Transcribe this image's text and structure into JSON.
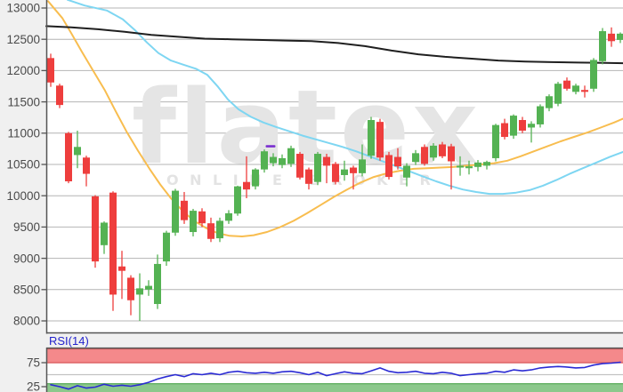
{
  "watermark": {
    "brand": "flatex",
    "subtitle": "ONLINE BROKER"
  },
  "colors": {
    "background_outer": "#f0f0f0",
    "background_panel": "#ffffff",
    "grid": "#b4b4b4",
    "axis_border": "#555555",
    "label_text": "#4a4a4a",
    "candle_up": "#54b253",
    "candle_down": "#ee3e3d",
    "ma_short_orange": "#f8bd4f",
    "ma_mid_cyan": "#7ed6f2",
    "ma_long_black": "#1f1f1f",
    "marker_purple": "#7a2fd0",
    "watermark_gray": "#e5e5e5",
    "rsi_line_blue": "#2b2bd4",
    "rsi_title_blue": "#2323cc",
    "rsi_band_red_fill": "#f4898b",
    "rsi_band_red_edge": "#dd6466",
    "rsi_band_green_fill": "#8cc88c",
    "rsi_band_green_edge": "#63b063",
    "rsi_midline_gray": "#c2c2c2"
  },
  "chart_data": [
    {
      "type": "candlestick",
      "title": "",
      "xlabel": "",
      "ylabel": "",
      "grid": true,
      "ylim": [
        7950,
        13130
      ],
      "y_ticks": [
        13000,
        12500,
        12000,
        11500,
        11000,
        10500,
        10000,
        9500,
        9000,
        8500,
        8000
      ],
      "candle_format": [
        "x",
        "open",
        "high",
        "low",
        "close"
      ],
      "candles": [
        [
          57,
          12200,
          12270,
          11740,
          11810
        ],
        [
          67,
          11760,
          11790,
          11400,
          11450
        ],
        [
          77,
          11000,
          11020,
          10200,
          10230
        ],
        [
          87,
          10650,
          11040,
          10440,
          10780
        ],
        [
          97,
          10610,
          10640,
          10150,
          10350
        ],
        [
          107,
          9990,
          10010,
          8850,
          8950
        ],
        [
          117,
          9210,
          9590,
          9070,
          9570
        ],
        [
          127,
          10050,
          10070,
          8160,
          8420
        ],
        [
          137,
          8870,
          9120,
          8350,
          8800
        ],
        [
          147,
          8690,
          8730,
          8090,
          8330
        ],
        [
          157,
          8420,
          8760,
          8000,
          8520
        ],
        [
          167,
          8500,
          8650,
          8400,
          8560
        ],
        [
          177,
          8270,
          9060,
          8190,
          8910
        ],
        [
          187,
          8950,
          9440,
          8880,
          9410
        ],
        [
          197,
          9410,
          10110,
          9360,
          10080
        ],
        [
          207,
          9920,
          10060,
          9550,
          9610
        ],
        [
          217,
          9420,
          9790,
          9350,
          9760
        ],
        [
          227,
          9750,
          9800,
          9500,
          9560
        ],
        [
          237,
          9560,
          9650,
          9260,
          9310
        ],
        [
          247,
          9320,
          9650,
          9260,
          9600
        ],
        [
          257,
          9600,
          9770,
          9550,
          9720
        ],
        [
          267,
          9715,
          10160,
          9680,
          10150
        ],
        [
          277,
          10220,
          10630,
          9960,
          10100
        ],
        [
          287,
          10150,
          10440,
          10100,
          10420
        ],
        [
          297,
          10420,
          10740,
          10370,
          10710
        ],
        [
          307,
          10520,
          10680,
          10470,
          10620
        ],
        [
          317,
          10490,
          10660,
          10440,
          10600
        ],
        [
          327,
          10510,
          10800,
          10460,
          10760
        ],
        [
          337,
          10670,
          10700,
          10260,
          10290
        ],
        [
          347,
          10420,
          10450,
          10100,
          10190
        ],
        [
          357,
          10220,
          10700,
          10170,
          10670
        ],
        [
          367,
          10620,
          10670,
          10200,
          10480
        ],
        [
          377,
          10510,
          10540,
          10180,
          10220
        ],
        [
          387,
          10330,
          10560,
          10240,
          10420
        ],
        [
          397,
          10450,
          10480,
          10100,
          10360
        ],
        [
          407,
          10360,
          10820,
          10310,
          10580
        ],
        [
          417,
          10640,
          11260,
          10590,
          11210
        ],
        [
          427,
          11180,
          11230,
          10560,
          10610
        ],
        [
          437,
          10650,
          10700,
          10260,
          10300
        ],
        [
          447,
          10620,
          10760,
          10420,
          10470
        ],
        [
          457,
          10290,
          10520,
          10150,
          10480
        ],
        [
          467,
          10540,
          10730,
          10490,
          10680
        ],
        [
          477,
          10780,
          10820,
          10480,
          10510
        ],
        [
          487,
          10610,
          10840,
          10560,
          10800
        ],
        [
          497,
          10820,
          10860,
          10600,
          10630
        ],
        [
          507,
          10790,
          10830,
          10100,
          10550
        ],
        [
          517,
          10450,
          10630,
          10320,
          10480
        ],
        [
          527,
          10440,
          10560,
          10340,
          10470
        ],
        [
          537,
          10460,
          10570,
          10390,
          10530
        ],
        [
          547,
          10480,
          10560,
          10420,
          10540
        ],
        [
          557,
          10600,
          11150,
          10550,
          11130
        ],
        [
          567,
          11160,
          11230,
          10900,
          10940
        ],
        [
          577,
          10960,
          11300,
          10910,
          11280
        ],
        [
          587,
          11210,
          11260,
          11000,
          11040
        ],
        [
          597,
          11090,
          11190,
          10850,
          11150
        ],
        [
          607,
          11140,
          11460,
          11090,
          11430
        ],
        [
          617,
          11400,
          11620,
          11350,
          11590
        ],
        [
          627,
          11470,
          11820,
          11430,
          11790
        ],
        [
          637,
          11840,
          11890,
          11680,
          11710
        ],
        [
          647,
          11660,
          11790,
          11620,
          11760
        ],
        [
          657,
          11690,
          11760,
          11570,
          11660
        ],
        [
          667,
          11710,
          12200,
          11660,
          12170
        ],
        [
          677,
          12150,
          12680,
          12100,
          12630
        ],
        [
          687,
          12590,
          12690,
          12380,
          12470
        ],
        [
          697,
          12490,
          12610,
          12440,
          12590
        ]
      ],
      "overlays": [
        {
          "name": "ma-short-orange",
          "color": "#f8bd4f",
          "points": [
            [
              54,
              13110
            ],
            [
              70,
              12840
            ],
            [
              80,
              12600
            ],
            [
              92,
              12300
            ],
            [
              105,
              11990
            ],
            [
              118,
              11680
            ],
            [
              130,
              11350
            ],
            [
              142,
              11030
            ],
            [
              155,
              10720
            ],
            [
              168,
              10430
            ],
            [
              180,
              10180
            ],
            [
              192,
              9960
            ],
            [
              205,
              9760
            ],
            [
              218,
              9600
            ],
            [
              232,
              9480
            ],
            [
              245,
              9400
            ],
            [
              258,
              9360
            ],
            [
              272,
              9350
            ],
            [
              285,
              9370
            ],
            [
              300,
              9420
            ],
            [
              315,
              9500
            ],
            [
              330,
              9600
            ],
            [
              345,
              9720
            ],
            [
              360,
              9850
            ],
            [
              375,
              9980
            ],
            [
              390,
              10100
            ],
            [
              405,
              10210
            ],
            [
              420,
              10300
            ],
            [
              435,
              10360
            ],
            [
              450,
              10400
            ],
            [
              465,
              10430
            ],
            [
              480,
              10440
            ],
            [
              495,
              10450
            ],
            [
              510,
              10460
            ],
            [
              525,
              10480
            ],
            [
              540,
              10500
            ],
            [
              555,
              10520
            ],
            [
              570,
              10560
            ],
            [
              585,
              10630
            ],
            [
              600,
              10710
            ],
            [
              615,
              10790
            ],
            [
              630,
              10870
            ],
            [
              645,
              10940
            ],
            [
              660,
              11010
            ],
            [
              675,
              11090
            ],
            [
              690,
              11170
            ],
            [
              700,
              11230
            ]
          ]
        },
        {
          "name": "ma-mid-cyan",
          "color": "#7ed6f2",
          "points": [
            [
              76,
              13130
            ],
            [
              95,
              13040
            ],
            [
              120,
              12960
            ],
            [
              138,
              12820
            ],
            [
              152,
              12640
            ],
            [
              165,
              12450
            ],
            [
              178,
              12280
            ],
            [
              192,
              12160
            ],
            [
              205,
              12100
            ],
            [
              220,
              12030
            ],
            [
              233,
              11930
            ],
            [
              245,
              11740
            ],
            [
              256,
              11540
            ],
            [
              268,
              11380
            ],
            [
              282,
              11260
            ],
            [
              296,
              11170
            ],
            [
              310,
              11100
            ],
            [
              325,
              11030
            ],
            [
              340,
              10960
            ],
            [
              355,
              10900
            ],
            [
              370,
              10840
            ],
            [
              385,
              10780
            ],
            [
              400,
              10710
            ],
            [
              415,
              10630
            ],
            [
              430,
              10550
            ],
            [
              445,
              10470
            ],
            [
              460,
              10390
            ],
            [
              475,
              10310
            ],
            [
              490,
              10230
            ],
            [
              505,
              10160
            ],
            [
              520,
              10100
            ],
            [
              535,
              10060
            ],
            [
              550,
              10030
            ],
            [
              565,
              10030
            ],
            [
              580,
              10050
            ],
            [
              595,
              10090
            ],
            [
              610,
              10160
            ],
            [
              625,
              10250
            ],
            [
              640,
              10350
            ],
            [
              655,
              10440
            ],
            [
              670,
              10530
            ],
            [
              685,
              10620
            ],
            [
              700,
              10700
            ]
          ]
        },
        {
          "name": "ma-long-black",
          "color": "#1f1f1f",
          "points": [
            [
              52,
              12710
            ],
            [
              80,
              12690
            ],
            [
              110,
              12660
            ],
            [
              140,
              12620
            ],
            [
              170,
              12570
            ],
            [
              200,
              12540
            ],
            [
              230,
              12510
            ],
            [
              260,
              12500
            ],
            [
              290,
              12490
            ],
            [
              320,
              12480
            ],
            [
              350,
              12470
            ],
            [
              380,
              12440
            ],
            [
              410,
              12390
            ],
            [
              440,
              12320
            ],
            [
              470,
              12260
            ],
            [
              500,
              12220
            ],
            [
              530,
              12190
            ],
            [
              560,
              12160
            ],
            [
              590,
              12145
            ],
            [
              620,
              12135
            ],
            [
              650,
              12128
            ],
            [
              680,
              12122
            ],
            [
              700,
              12118
            ]
          ]
        }
      ],
      "marker": {
        "x": 304,
        "value": 10790,
        "shape": "dash",
        "color": "#7a2fd0"
      }
    },
    {
      "type": "line",
      "title": "RSI(14)",
      "legend": "RSI(14)",
      "levels": {
        "overbought": 75,
        "midline": 50,
        "oversold": 25
      },
      "level_labels": [
        "75",
        "25"
      ],
      "ylim": [
        0,
        100
      ],
      "values": [
        29,
        25,
        20,
        27,
        22,
        24,
        30,
        26,
        28,
        26,
        29,
        34,
        41,
        46,
        50,
        46,
        52,
        50,
        53,
        50,
        55,
        57,
        54,
        53,
        55,
        53,
        56,
        57,
        54,
        50,
        55,
        48,
        52,
        56,
        53,
        52,
        58,
        64,
        57,
        54,
        55,
        57,
        53,
        52,
        55,
        53,
        48,
        50,
        52,
        53,
        57,
        55,
        60,
        58,
        60,
        64,
        66,
        67,
        66,
        64,
        65,
        70,
        73,
        74,
        76
      ]
    }
  ]
}
